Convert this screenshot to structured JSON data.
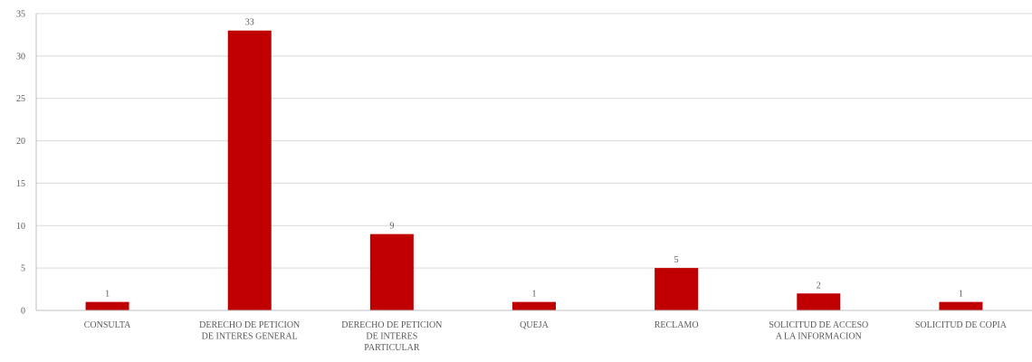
{
  "chart_data": {
    "type": "bar",
    "categories": [
      "CONSULTA",
      "DERECHO DE PETICION DE INTERES GENERAL",
      "DERECHO DE PETICION DE INTERES PARTICULAR",
      "QUEJA",
      "RECLAMO",
      "SOLICITUD DE ACCESO A LA INFORMACION",
      "SOLICITUD DE COPIA"
    ],
    "category_lines": [
      [
        "CONSULTA"
      ],
      [
        "DERECHO DE PETICION",
        "DE INTERES GENERAL"
      ],
      [
        "DERECHO DE PETICION",
        "DE INTERES",
        "PARTICULAR"
      ],
      [
        "QUEJA"
      ],
      [
        "RECLAMO"
      ],
      [
        "SOLICITUD DE ACCESO",
        "A LA INFORMACION"
      ],
      [
        "SOLICITUD DE COPIA"
      ]
    ],
    "values": [
      1,
      33,
      9,
      1,
      5,
      2,
      1
    ],
    "data_labels": [
      "1",
      "33",
      "9",
      "1",
      "5",
      "2",
      "1"
    ],
    "ylim": [
      0,
      35
    ],
    "yticks": [
      0,
      5,
      10,
      15,
      20,
      25,
      30,
      35
    ],
    "grid": true,
    "legend": "none",
    "bar_color": "#c00000",
    "title": "",
    "xlabel": "",
    "ylabel": ""
  }
}
